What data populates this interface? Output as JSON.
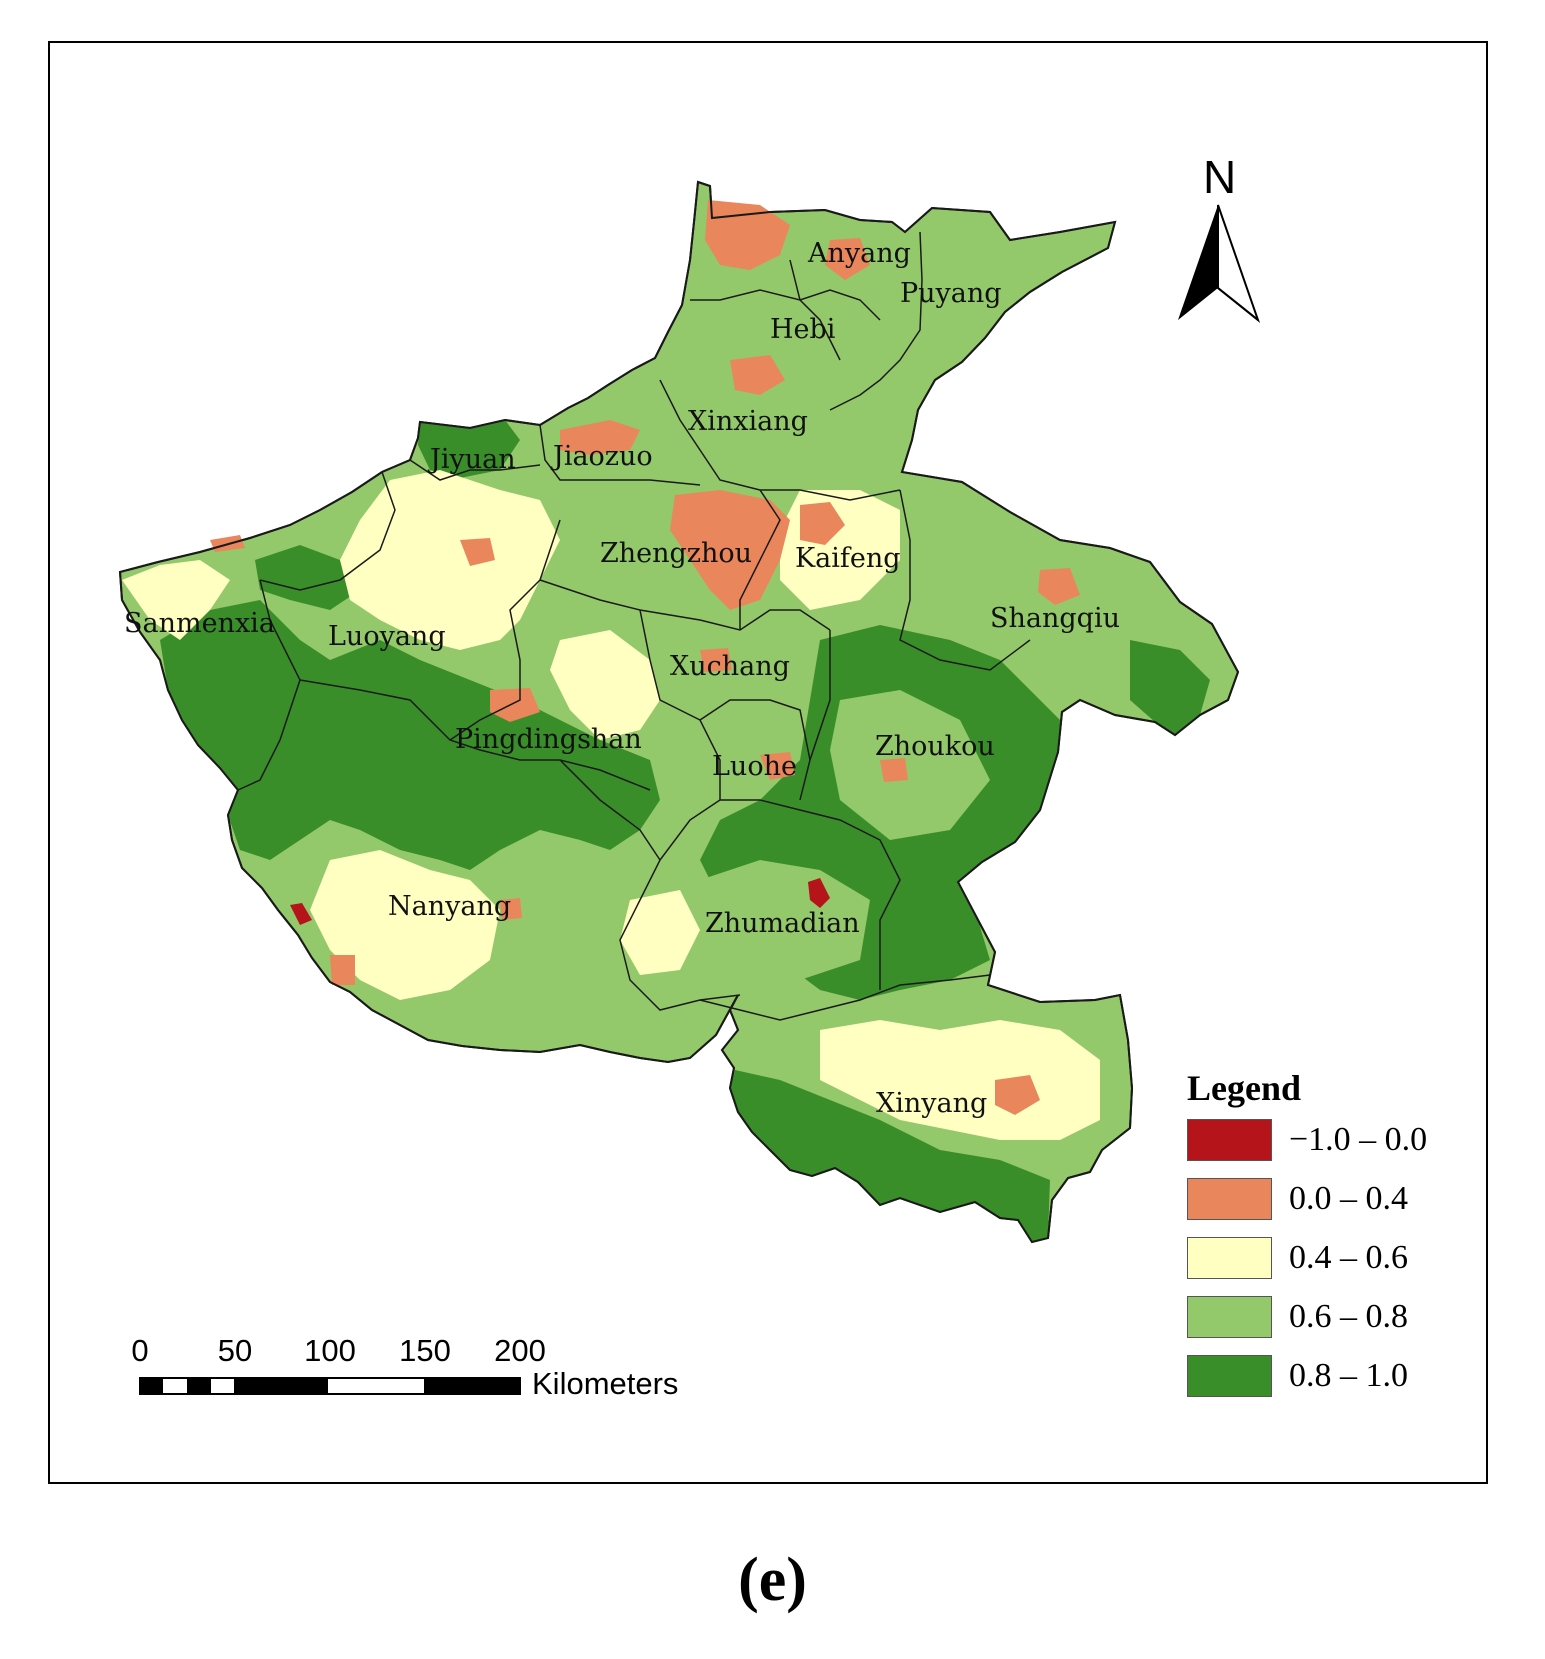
{
  "map": {
    "regions": [
      {
        "name": "Anyang"
      },
      {
        "name": "Puyang"
      },
      {
        "name": "Hebi"
      },
      {
        "name": "Xinxiang"
      },
      {
        "name": "Jiyuan"
      },
      {
        "name": "Jiaozuo"
      },
      {
        "name": "Zhengzhou"
      },
      {
        "name": "Kaifeng"
      },
      {
        "name": "Shangqiu"
      },
      {
        "name": "Sanmenxia"
      },
      {
        "name": "Luoyang"
      },
      {
        "name": "Xuchang"
      },
      {
        "name": "Pingdingshan"
      },
      {
        "name": "Luohe"
      },
      {
        "name": "Zhoukou"
      },
      {
        "name": "Nanyang"
      },
      {
        "name": "Zhumadian"
      },
      {
        "name": "Xinyang"
      }
    ],
    "colors": {
      "class_1": "#b5141a",
      "class_2": "#e9865c",
      "class_3": "#ffffc2",
      "class_4": "#93c96a",
      "class_5": "#3a8e2a",
      "boundary": "#1a1a1a"
    }
  },
  "north_arrow": {
    "label": "N"
  },
  "legend": {
    "title": "Legend",
    "items": [
      {
        "label": "−1.0 – 0.0",
        "color": "#b5141a"
      },
      {
        "label": "0.0 – 0.4",
        "color": "#e9865c"
      },
      {
        "label": "0.4 – 0.6",
        "color": "#ffffc2"
      },
      {
        "label": "0.6 – 0.8",
        "color": "#93c96a"
      },
      {
        "label": "0.8 – 1.0",
        "color": "#3a8e2a"
      }
    ]
  },
  "scale_bar": {
    "ticks": [
      "0",
      "50",
      "100",
      "150",
      "200"
    ],
    "unit": "Kilometers"
  },
  "panel_label": "(e)"
}
